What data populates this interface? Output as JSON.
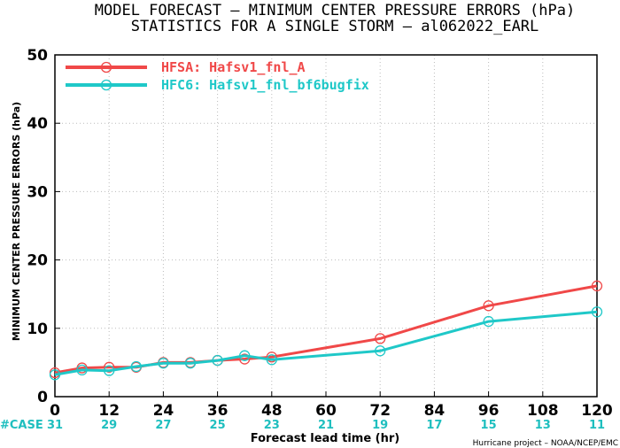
{
  "title_line1": "MODEL FORECAST – MINIMUM CENTER PRESSURE ERRORS (hPa)",
  "title_line2": "STATISTICS FOR A SINGLE STORM – al062022_EARL",
  "credit": "Hurricane project – NOAA/NCEP/EMC",
  "case_label": "#CASE",
  "chart_data": {
    "type": "line",
    "xlabel": "Forecast lead time (hr)",
    "ylabel": "MINIMUM CENTER PRESSURE ERRORS (hPa)",
    "xlim": [
      0,
      120
    ],
    "ylim": [
      0,
      50
    ],
    "xticks": [
      0,
      12,
      24,
      36,
      48,
      60,
      72,
      84,
      96,
      108,
      120
    ],
    "yticks": [
      0,
      10,
      20,
      30,
      40,
      50
    ],
    "grid": true,
    "legend_position": "top-left",
    "case_hours": [
      0,
      12,
      24,
      36,
      48,
      60,
      72,
      84,
      96,
      108,
      120
    ],
    "case_counts": [
      "31",
      "29",
      "27",
      "25",
      "23",
      "21",
      "19",
      "17",
      "15",
      "13",
      "11"
    ],
    "series": [
      {
        "name": "HFSA: Hafsv1_fnl_A",
        "color": "#f04848",
        "x": [
          0,
          6,
          12,
          18,
          24,
          30,
          36,
          42,
          48,
          72,
          96,
          120
        ],
        "y": [
          3.5,
          4.2,
          4.3,
          4.3,
          5.0,
          5.0,
          5.3,
          5.5,
          5.8,
          8.5,
          13.3,
          16.2
        ]
      },
      {
        "name": "HFC6: Hafsv1_fnl_bf6bugfix",
        "color": "#1fc8c8",
        "x": [
          0,
          6,
          12,
          18,
          24,
          30,
          36,
          42,
          48,
          72,
          96,
          120
        ],
        "y": [
          3.2,
          3.9,
          3.8,
          4.4,
          4.9,
          4.9,
          5.3,
          6.0,
          5.4,
          6.7,
          11.0,
          12.4
        ]
      }
    ]
  }
}
